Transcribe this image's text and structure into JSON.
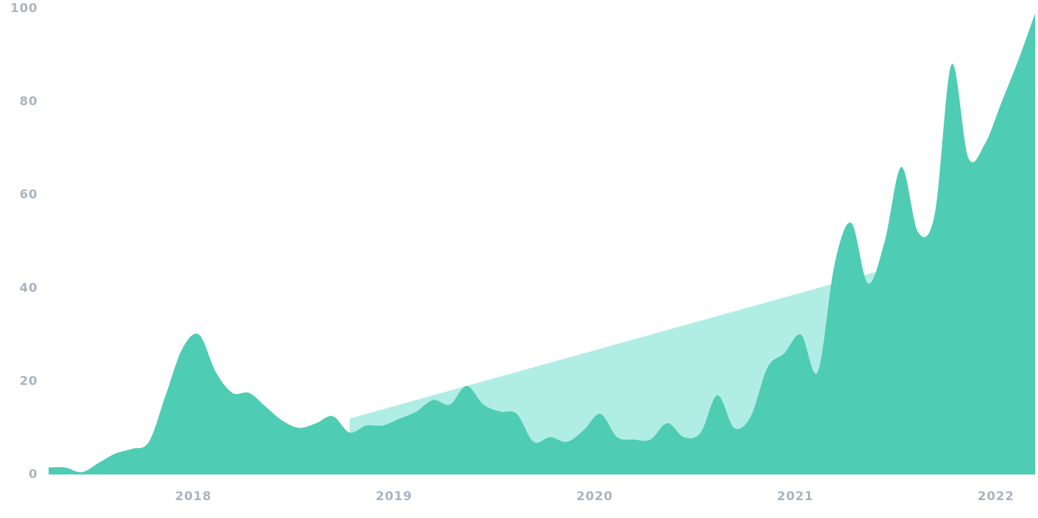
{
  "chart_data": {
    "type": "area",
    "categories": [
      null,
      null,
      null,
      null,
      null,
      null,
      null,
      null,
      null,
      "2018",
      null,
      null,
      null,
      null,
      null,
      null,
      null,
      null,
      null,
      null,
      null,
      "2019",
      null,
      null,
      null,
      null,
      null,
      null,
      null,
      null,
      null,
      null,
      null,
      "2020",
      null,
      null,
      null,
      null,
      null,
      null,
      null,
      null,
      null,
      null,
      null,
      "2021",
      null,
      null,
      null,
      null,
      null,
      null,
      null,
      null,
      null,
      null,
      null,
      "2022",
      null,
      null
    ],
    "series": [
      {
        "color": "#b0ede4",
        "values": [
          null,
          null,
          null,
          null,
          null,
          null,
          null,
          null,
          null,
          null,
          null,
          null,
          null,
          null,
          null,
          null,
          null,
          null,
          12,
          13,
          14,
          15,
          16,
          17,
          18,
          19,
          20,
          21,
          22,
          23,
          24,
          25,
          26,
          27,
          28,
          29,
          30,
          31,
          32,
          33,
          34,
          35,
          36,
          37,
          38,
          39,
          40,
          41,
          42,
          43,
          44,
          null,
          null,
          null,
          null,
          null,
          null,
          null,
          null,
          null
        ]
      },
      {
        "color": "#4fccb4",
        "values": [
          1.5,
          1.5,
          0.5,
          2.5,
          4.5,
          5.5,
          7,
          17,
          27,
          30,
          22,
          17.5,
          17.5,
          14.5,
          11.5,
          10,
          11,
          12.5,
          9,
          10.5,
          10.5,
          12,
          13.5,
          16,
          15,
          19,
          15,
          13.5,
          13,
          7,
          8,
          7,
          9.5,
          13,
          8,
          7.5,
          7.5,
          11,
          8,
          9,
          17,
          10,
          12.5,
          23,
          26,
          30,
          22,
          45,
          54,
          41,
          50,
          66,
          52,
          56,
          88,
          68,
          71,
          80,
          89,
          99
        ]
      }
    ],
    "ylim": [
      0,
      100
    ],
    "yticks": [
      0,
      20,
      40,
      60,
      80,
      100
    ],
    "grid": false
  }
}
